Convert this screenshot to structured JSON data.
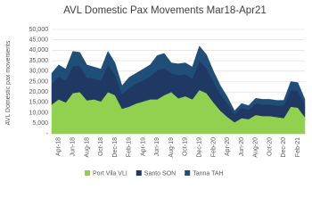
{
  "chart_data": {
    "type": "stacked_area",
    "title": "AVL Domestic Pax Movements Mar18-Apr21",
    "y_label": "AVL Domestic pax movements",
    "categories": [
      null,
      "Apr-18",
      null,
      "Jun-18",
      null,
      "Aug-18",
      null,
      "Oct-18",
      null,
      "Dec-18",
      null,
      "Feb-19",
      null,
      "Apr-19",
      null,
      "Jun-19",
      null,
      "Aug-19",
      null,
      "Oct-19",
      null,
      "Dec-19",
      null,
      "Feb-20",
      null,
      "Apr-20",
      null,
      "Jun-20",
      null,
      "Aug-20",
      null,
      "Oct-20",
      null,
      "Dec-20",
      null,
      "Feb-21",
      null
    ],
    "series": [
      {
        "name": "Port Vila VLI",
        "color": "#92d050",
        "values": [
          14000,
          16500,
          15000,
          19500,
          20000,
          16000,
          16500,
          15500,
          20000,
          18500,
          12000,
          13000,
          14500,
          15500,
          16500,
          16500,
          18500,
          20000,
          17000,
          18000,
          16500,
          21000,
          19500,
          15000,
          11000,
          8000,
          5500,
          7500,
          7000,
          9000,
          8500,
          8500,
          8000,
          7500,
          13000,
          12500,
          8000
        ]
      },
      {
        "name": "Santo SON",
        "color": "#203864",
        "values": [
          10000,
          11000,
          10500,
          13000,
          12500,
          11000,
          10000,
          10000,
          13000,
          10000,
          7000,
          9000,
          9500,
          10000,
          11000,
          14000,
          13000,
          9000,
          11000,
          10500,
          10000,
          14000,
          12000,
          10000,
          8000,
          6500,
          4000,
          5000,
          4500,
          5500,
          5500,
          5500,
          5500,
          6000,
          8000,
          8000,
          6000
        ]
      },
      {
        "name": "Tanna TAH",
        "color": "#1f4e79",
        "values": [
          5000,
          5500,
          5500,
          7000,
          6500,
          6000,
          5500,
          5500,
          6500,
          5500,
          4000,
          5000,
          5000,
          5500,
          5500,
          7000,
          7000,
          5000,
          5500,
          5500,
          5500,
          7000,
          6500,
          5000,
          4000,
          3000,
          1500,
          2000,
          2000,
          2500,
          2500,
          2500,
          2500,
          2500,
          4000,
          4000,
          2500
        ]
      }
    ],
    "ylim": [
      0,
      50000
    ],
    "yticks": [
      {
        "value": 0,
        "label": "-"
      },
      {
        "value": 5000,
        "label": "5,000"
      },
      {
        "value": 10000,
        "label": "10,000"
      },
      {
        "value": 15000,
        "label": "15,000"
      },
      {
        "value": 20000,
        "label": "20,000"
      },
      {
        "value": 25000,
        "label": "25,000"
      },
      {
        "value": 30000,
        "label": "30,000"
      },
      {
        "value": 35000,
        "label": "35,000"
      },
      {
        "value": 40000,
        "label": "40,000"
      },
      {
        "value": 45000,
        "label": "45,000"
      },
      {
        "value": 50000,
        "label": "50,000"
      }
    ],
    "grid": true
  }
}
